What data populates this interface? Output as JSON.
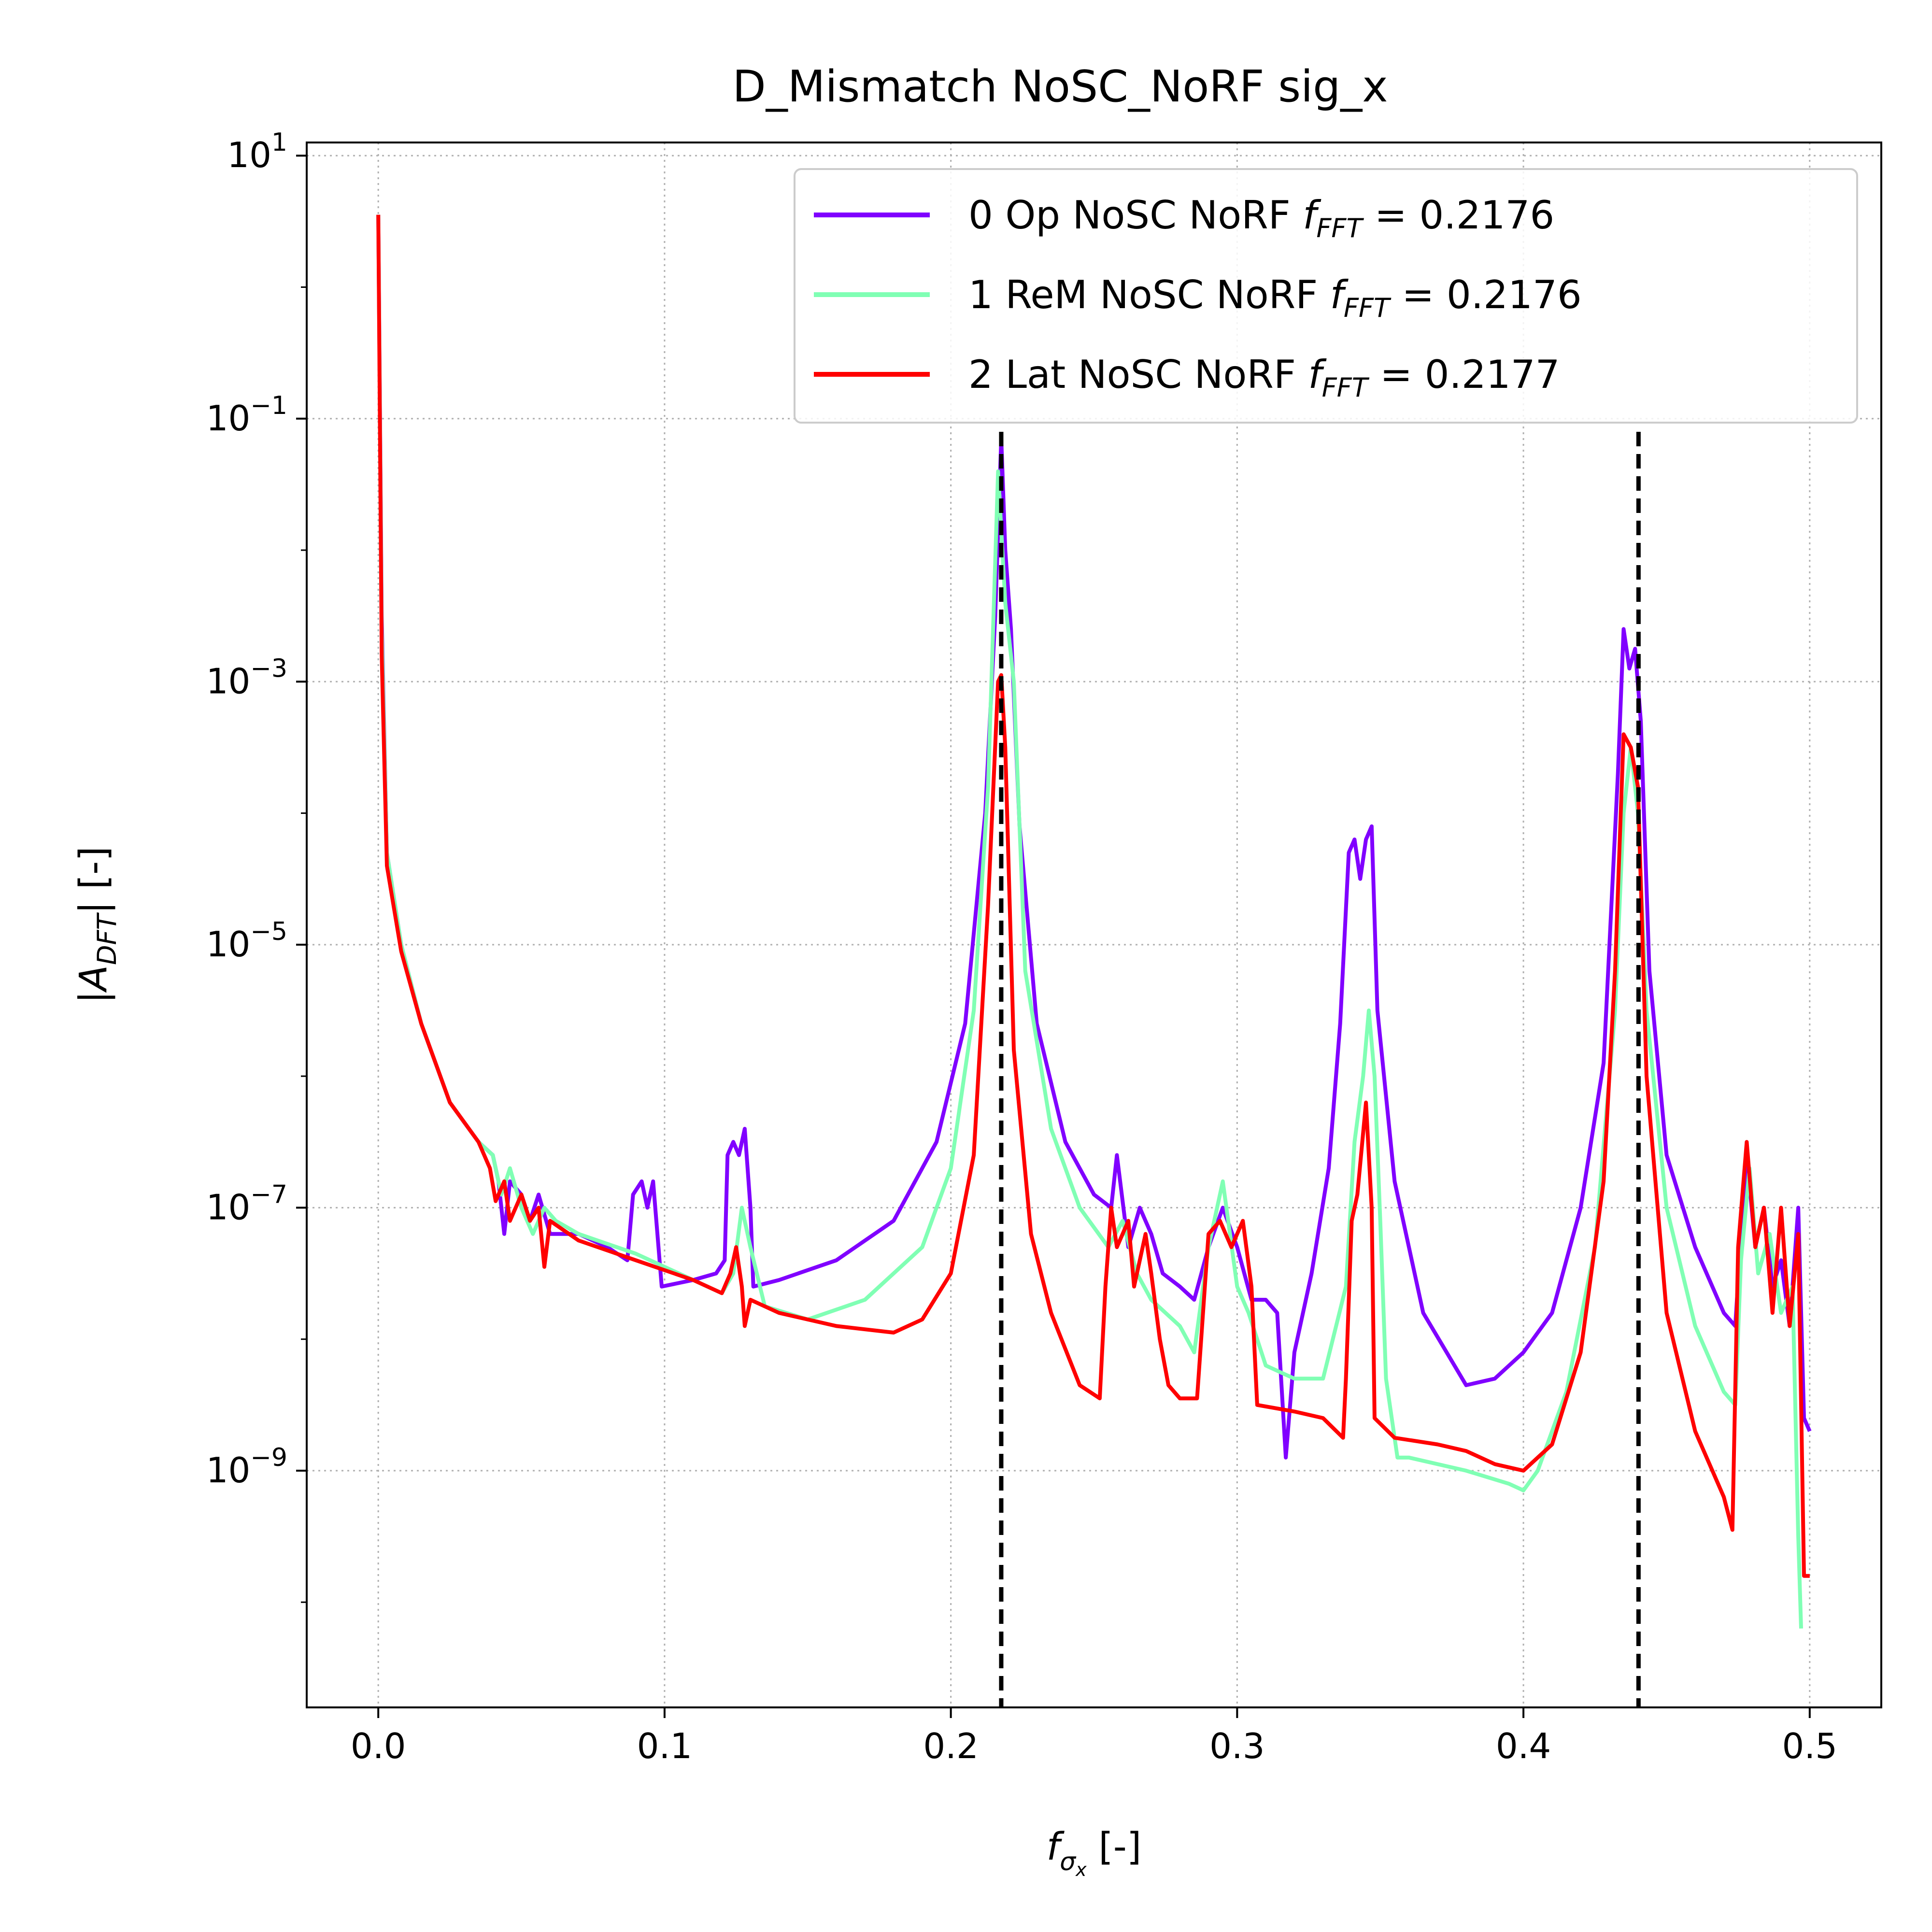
{
  "chart_data": {
    "type": "line",
    "title": "D_Mismatch NoSC_NoRF sig_x",
    "xlabel": "f_σx [-]",
    "ylabel": "|A_DFT| [-]",
    "xlim": [
      -0.025,
      0.525
    ],
    "ylim_log10": [
      -10.8,
      1.1
    ],
    "y_scale": "log",
    "grid": true,
    "legend_position": "top-right",
    "x_ticks": [
      0.0,
      0.1,
      0.2,
      0.3,
      0.4,
      0.5
    ],
    "x_tick_labels": [
      "0.0",
      "0.1",
      "0.2",
      "0.3",
      "0.4",
      "0.5"
    ],
    "y_tick_exponents": [
      1,
      -1,
      -3,
      -5,
      -7,
      -9
    ],
    "vlines": [
      {
        "x": 0.2176,
        "color": "#000000",
        "style": "dashed"
      },
      {
        "x": 0.4402,
        "color": "#000000",
        "style": "dashed"
      }
    ],
    "series": [
      {
        "name": "0 Op NoSC NoRF",
        "fft_label": "f_FFT =",
        "fft_value": "0.2176",
        "color": "#8000ff",
        "points": [
          [
            0.0,
            0.55
          ],
          [
            0.0012,
            -2.5
          ],
          [
            0.003,
            -4.3
          ],
          [
            0.008,
            -5.0
          ],
          [
            0.015,
            -5.6
          ],
          [
            0.025,
            -6.2
          ],
          [
            0.035,
            -6.5
          ],
          [
            0.04,
            -6.6
          ],
          [
            0.042,
            -6.8
          ],
          [
            0.044,
            -7.2
          ],
          [
            0.046,
            -6.8
          ],
          [
            0.05,
            -6.9
          ],
          [
            0.053,
            -7.1
          ],
          [
            0.056,
            -6.9
          ],
          [
            0.06,
            -7.2
          ],
          [
            0.07,
            -7.2
          ],
          [
            0.08,
            -7.3
          ],
          [
            0.087,
            -7.4
          ],
          [
            0.089,
            -6.9
          ],
          [
            0.092,
            -6.8
          ],
          [
            0.094,
            -7.0
          ],
          [
            0.096,
            -6.8
          ],
          [
            0.099,
            -7.6
          ],
          [
            0.11,
            -7.55
          ],
          [
            0.118,
            -7.5
          ],
          [
            0.121,
            -7.4
          ],
          [
            0.122,
            -6.6
          ],
          [
            0.124,
            -6.5
          ],
          [
            0.126,
            -6.6
          ],
          [
            0.128,
            -6.4
          ],
          [
            0.13,
            -7.0
          ],
          [
            0.131,
            -7.6
          ],
          [
            0.14,
            -7.55
          ],
          [
            0.16,
            -7.4
          ],
          [
            0.18,
            -7.1
          ],
          [
            0.195,
            -6.5
          ],
          [
            0.205,
            -5.6
          ],
          [
            0.212,
            -4.0
          ],
          [
            0.2155,
            -2.5
          ],
          [
            0.2176,
            -1.15
          ],
          [
            0.219,
            -2.0
          ],
          [
            0.221,
            -2.6
          ],
          [
            0.224,
            -4.1
          ],
          [
            0.23,
            -5.6
          ],
          [
            0.24,
            -6.5
          ],
          [
            0.25,
            -6.9
          ],
          [
            0.256,
            -7.0
          ],
          [
            0.258,
            -6.6
          ],
          [
            0.262,
            -7.3
          ],
          [
            0.266,
            -7.0
          ],
          [
            0.27,
            -7.2
          ],
          [
            0.274,
            -7.5
          ],
          [
            0.28,
            -7.6
          ],
          [
            0.285,
            -7.7
          ],
          [
            0.29,
            -7.3
          ],
          [
            0.295,
            -7.0
          ],
          [
            0.3,
            -7.3
          ],
          [
            0.305,
            -7.7
          ],
          [
            0.31,
            -7.7
          ],
          [
            0.314,
            -7.8
          ],
          [
            0.317,
            -8.9
          ],
          [
            0.32,
            -8.1
          ],
          [
            0.326,
            -7.5
          ],
          [
            0.332,
            -6.7
          ],
          [
            0.336,
            -5.6
          ],
          [
            0.339,
            -4.3
          ],
          [
            0.341,
            -4.2
          ],
          [
            0.343,
            -4.5
          ],
          [
            0.345,
            -4.2
          ],
          [
            0.347,
            -4.1
          ],
          [
            0.349,
            -5.5
          ],
          [
            0.355,
            -6.8
          ],
          [
            0.365,
            -7.8
          ],
          [
            0.38,
            -8.35
          ],
          [
            0.39,
            -8.3
          ],
          [
            0.4,
            -8.1
          ],
          [
            0.41,
            -7.8
          ],
          [
            0.42,
            -7.0
          ],
          [
            0.428,
            -5.9
          ],
          [
            0.433,
            -3.7
          ],
          [
            0.435,
            -2.6
          ],
          [
            0.437,
            -2.9
          ],
          [
            0.439,
            -2.75
          ],
          [
            0.441,
            -3.3
          ],
          [
            0.444,
            -5.2
          ],
          [
            0.45,
            -6.6
          ],
          [
            0.46,
            -7.3
          ],
          [
            0.47,
            -7.8
          ],
          [
            0.474,
            -7.9
          ],
          [
            0.476,
            -7.2
          ],
          [
            0.478,
            -6.6
          ],
          [
            0.481,
            -7.3
          ],
          [
            0.484,
            -7.0
          ],
          [
            0.487,
            -7.6
          ],
          [
            0.49,
            -7.4
          ],
          [
            0.493,
            -7.9
          ],
          [
            0.496,
            -7.0
          ],
          [
            0.498,
            -8.6
          ],
          [
            0.5,
            -8.7
          ]
        ]
      },
      {
        "name": "1 ReM NoSC NoRF",
        "fft_label": "f_FFT =",
        "fft_value": "0.2176",
        "color": "#80ffb4",
        "points": [
          [
            0.0,
            0.55
          ],
          [
            0.0012,
            -2.6
          ],
          [
            0.003,
            -4.3
          ],
          [
            0.008,
            -5.0
          ],
          [
            0.015,
            -5.6
          ],
          [
            0.025,
            -6.2
          ],
          [
            0.035,
            -6.5
          ],
          [
            0.04,
            -6.6
          ],
          [
            0.043,
            -6.9
          ],
          [
            0.046,
            -6.7
          ],
          [
            0.05,
            -7.0
          ],
          [
            0.054,
            -7.2
          ],
          [
            0.058,
            -7.0
          ],
          [
            0.062,
            -7.1
          ],
          [
            0.07,
            -7.2
          ],
          [
            0.09,
            -7.35
          ],
          [
            0.11,
            -7.55
          ],
          [
            0.12,
            -7.65
          ],
          [
            0.124,
            -7.5
          ],
          [
            0.127,
            -7.0
          ],
          [
            0.13,
            -7.3
          ],
          [
            0.135,
            -7.75
          ],
          [
            0.15,
            -7.85
          ],
          [
            0.17,
            -7.7
          ],
          [
            0.19,
            -7.3
          ],
          [
            0.2,
            -6.7
          ],
          [
            0.208,
            -5.5
          ],
          [
            0.213,
            -3.8
          ],
          [
            0.2165,
            -1.4
          ],
          [
            0.219,
            -2.4
          ],
          [
            0.222,
            -3.0
          ],
          [
            0.226,
            -5.2
          ],
          [
            0.235,
            -6.4
          ],
          [
            0.245,
            -7.0
          ],
          [
            0.255,
            -7.3
          ],
          [
            0.26,
            -7.1
          ],
          [
            0.265,
            -7.5
          ],
          [
            0.27,
            -7.7
          ],
          [
            0.28,
            -7.9
          ],
          [
            0.285,
            -8.1
          ],
          [
            0.29,
            -7.3
          ],
          [
            0.295,
            -6.8
          ],
          [
            0.3,
            -7.6
          ],
          [
            0.304,
            -7.8
          ],
          [
            0.31,
            -8.2
          ],
          [
            0.32,
            -8.3
          ],
          [
            0.33,
            -8.3
          ],
          [
            0.338,
            -7.6
          ],
          [
            0.341,
            -6.5
          ],
          [
            0.344,
            -6.0
          ],
          [
            0.346,
            -5.5
          ],
          [
            0.348,
            -6.0
          ],
          [
            0.35,
            -7.1
          ],
          [
            0.352,
            -8.3
          ],
          [
            0.356,
            -8.9
          ],
          [
            0.36,
            -8.9
          ],
          [
            0.38,
            -9.0
          ],
          [
            0.395,
            -9.1
          ],
          [
            0.4,
            -9.15
          ],
          [
            0.405,
            -9.0
          ],
          [
            0.415,
            -8.4
          ],
          [
            0.425,
            -7.3
          ],
          [
            0.432,
            -5.5
          ],
          [
            0.435,
            -4.0
          ],
          [
            0.4375,
            -3.5
          ],
          [
            0.44,
            -4.0
          ],
          [
            0.443,
            -5.5
          ],
          [
            0.45,
            -7.0
          ],
          [
            0.46,
            -7.9
          ],
          [
            0.47,
            -8.4
          ],
          [
            0.474,
            -8.5
          ],
          [
            0.476,
            -7.4
          ],
          [
            0.479,
            -6.7
          ],
          [
            0.482,
            -7.5
          ],
          [
            0.486,
            -7.2
          ],
          [
            0.49,
            -7.8
          ],
          [
            0.494,
            -7.6
          ],
          [
            0.496,
            -9.5
          ],
          [
            0.497,
            -10.2
          ]
        ]
      },
      {
        "name": "2 Lat NoSC NoRF",
        "fft_label": "f_FFT =",
        "fft_value": "0.2177",
        "color": "#ff0000",
        "points": [
          [
            0.0,
            0.55
          ],
          [
            0.0012,
            -2.8
          ],
          [
            0.003,
            -4.4
          ],
          [
            0.008,
            -5.05
          ],
          [
            0.015,
            -5.6
          ],
          [
            0.025,
            -6.2
          ],
          [
            0.035,
            -6.5
          ],
          [
            0.039,
            -6.7
          ],
          [
            0.041,
            -6.95
          ],
          [
            0.044,
            -6.8
          ],
          [
            0.046,
            -7.1
          ],
          [
            0.05,
            -6.9
          ],
          [
            0.053,
            -7.1
          ],
          [
            0.056,
            -7.0
          ],
          [
            0.058,
            -7.45
          ],
          [
            0.06,
            -7.1
          ],
          [
            0.07,
            -7.25
          ],
          [
            0.09,
            -7.4
          ],
          [
            0.11,
            -7.55
          ],
          [
            0.12,
            -7.65
          ],
          [
            0.123,
            -7.5
          ],
          [
            0.125,
            -7.3
          ],
          [
            0.127,
            -7.6
          ],
          [
            0.128,
            -7.9
          ],
          [
            0.13,
            -7.7
          ],
          [
            0.14,
            -7.8
          ],
          [
            0.16,
            -7.9
          ],
          [
            0.18,
            -7.95
          ],
          [
            0.19,
            -7.85
          ],
          [
            0.2,
            -7.5
          ],
          [
            0.208,
            -6.6
          ],
          [
            0.213,
            -4.7
          ],
          [
            0.2165,
            -3.0
          ],
          [
            0.2176,
            -2.95
          ],
          [
            0.219,
            -3.5
          ],
          [
            0.222,
            -5.8
          ],
          [
            0.228,
            -7.2
          ],
          [
            0.235,
            -7.8
          ],
          [
            0.245,
            -8.35
          ],
          [
            0.252,
            -8.45
          ],
          [
            0.254,
            -7.6
          ],
          [
            0.256,
            -7.0
          ],
          [
            0.258,
            -7.3
          ],
          [
            0.262,
            -7.1
          ],
          [
            0.264,
            -7.6
          ],
          [
            0.268,
            -7.2
          ],
          [
            0.27,
            -7.5
          ],
          [
            0.273,
            -8.0
          ],
          [
            0.276,
            -8.35
          ],
          [
            0.28,
            -8.45
          ],
          [
            0.286,
            -8.45
          ],
          [
            0.29,
            -7.2
          ],
          [
            0.294,
            -7.1
          ],
          [
            0.298,
            -7.3
          ],
          [
            0.302,
            -7.1
          ],
          [
            0.305,
            -7.6
          ],
          [
            0.307,
            -8.5
          ],
          [
            0.32,
            -8.55
          ],
          [
            0.33,
            -8.6
          ],
          [
            0.337,
            -8.75
          ],
          [
            0.338,
            -8.3
          ],
          [
            0.34,
            -7.1
          ],
          [
            0.342,
            -6.9
          ],
          [
            0.345,
            -6.2
          ],
          [
            0.347,
            -7.0
          ],
          [
            0.348,
            -8.6
          ],
          [
            0.355,
            -8.75
          ],
          [
            0.37,
            -8.8
          ],
          [
            0.38,
            -8.85
          ],
          [
            0.39,
            -8.95
          ],
          [
            0.4,
            -9.0
          ],
          [
            0.41,
            -8.8
          ],
          [
            0.42,
            -8.1
          ],
          [
            0.428,
            -6.8
          ],
          [
            0.432,
            -5.2
          ],
          [
            0.435,
            -3.4
          ],
          [
            0.4375,
            -3.5
          ],
          [
            0.44,
            -3.8
          ],
          [
            0.443,
            -6.0
          ],
          [
            0.45,
            -7.8
          ],
          [
            0.46,
            -8.7
          ],
          [
            0.47,
            -9.2
          ],
          [
            0.473,
            -9.45
          ],
          [
            0.475,
            -7.3
          ],
          [
            0.478,
            -6.5
          ],
          [
            0.481,
            -7.3
          ],
          [
            0.484,
            -7.0
          ],
          [
            0.487,
            -7.8
          ],
          [
            0.49,
            -7.0
          ],
          [
            0.493,
            -7.9
          ],
          [
            0.496,
            -7.2
          ],
          [
            0.498,
            -9.8
          ],
          [
            0.5,
            -9.8
          ]
        ]
      }
    ]
  }
}
